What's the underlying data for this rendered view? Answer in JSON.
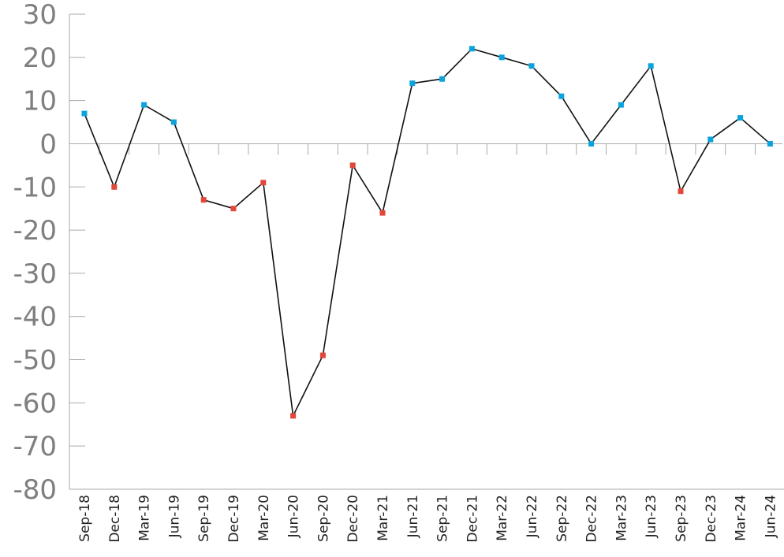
{
  "chart_data": {
    "type": "line",
    "title": "",
    "xlabel": "",
    "ylabel": "",
    "ylim": [
      -80,
      30
    ],
    "yticks": [
      30,
      20,
      10,
      0,
      -10,
      -20,
      -30,
      -40,
      -50,
      -60,
      -70,
      -80
    ],
    "grid": false,
    "categories": [
      "Sep-18",
      "Dec-18",
      "Mar-19",
      "Jun-19",
      "Sep-19",
      "Dec-19",
      "Mar-20",
      "Jun-20",
      "Sep-20",
      "Dec-20",
      "Mar-21",
      "Jun-21",
      "Sep-21",
      "Dec-21",
      "Mar-22",
      "Jun-22",
      "Sep-22",
      "Dec-22",
      "Mar-23",
      "Jun-23",
      "Sep-23",
      "Dec-23",
      "Mar-24",
      "Jun-24"
    ],
    "series": [
      {
        "values": [
          7,
          -10,
          9,
          5,
          -13,
          -15,
          -9,
          -63,
          -49,
          -5,
          -16,
          14,
          15,
          22,
          20,
          18,
          11,
          0,
          9,
          18,
          -11,
          1,
          6,
          0
        ],
        "line_color": "#111111",
        "positive_marker_color": "#0aa3db",
        "negative_marker_color": "#e0483a"
      }
    ],
    "axis_color": "#aaaaaa"
  }
}
